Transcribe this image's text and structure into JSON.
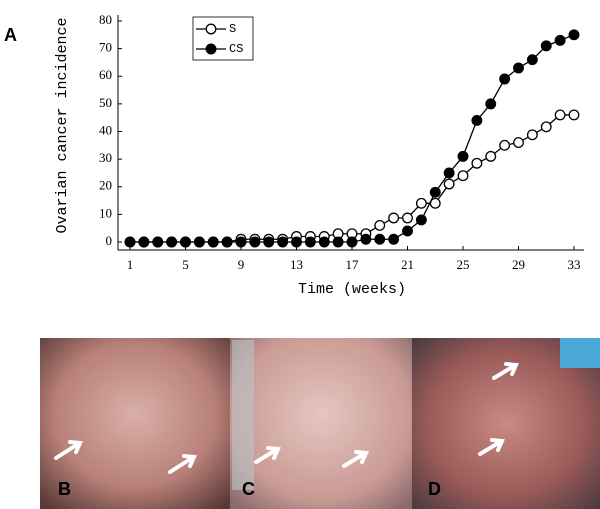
{
  "panel_label": "A",
  "photo_panels": [
    "B",
    "C",
    "D"
  ],
  "chart_data": {
    "type": "line",
    "x_label": "Time (weeks)",
    "y_label": "Ovarian cancer incidence",
    "x": [
      1,
      2,
      3,
      4,
      5,
      6,
      7,
      8,
      9,
      10,
      11,
      12,
      13,
      14,
      15,
      16,
      17,
      18,
      19,
      20,
      21,
      22,
      23,
      24,
      25,
      26,
      27,
      28,
      29,
      30,
      31,
      32,
      33
    ],
    "series": [
      {
        "name": "S",
        "color": "#000000",
        "filled": false,
        "values": [
          0,
          0,
          0,
          0,
          0,
          0,
          0,
          0,
          1,
          1,
          1,
          1,
          2,
          2,
          2,
          3,
          3,
          3,
          6,
          8.7,
          8.7,
          14,
          14,
          21,
          24,
          28.5,
          31,
          35,
          36,
          38.8,
          41.7,
          46,
          46
        ]
      },
      {
        "name": "CS",
        "color": "#000000",
        "filled": true,
        "values": [
          0,
          0,
          0,
          0,
          0,
          0,
          0,
          0,
          0,
          0,
          0,
          0,
          0,
          0,
          0,
          0,
          0,
          1,
          1,
          1,
          4,
          8,
          18,
          25,
          31,
          44,
          50,
          59,
          63,
          66,
          71,
          73,
          75
        ]
      }
    ],
    "xlim": [
      1,
      33
    ],
    "xticks": [
      1,
      5,
      9,
      13,
      17,
      21,
      25,
      29,
      33
    ],
    "ylim": [
      0,
      80
    ],
    "yticks": [
      0,
      10,
      20,
      30,
      40,
      50,
      60,
      70,
      80
    ],
    "grid": false,
    "legend": "upper-left"
  }
}
